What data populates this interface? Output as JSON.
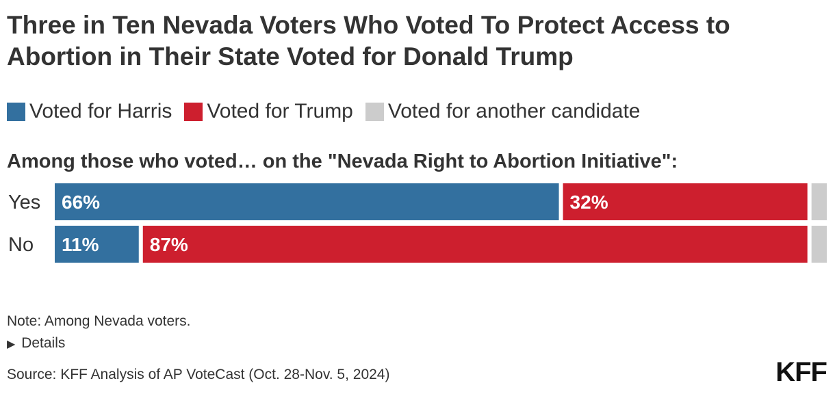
{
  "chart_data": {
    "type": "bar",
    "stacked": true,
    "orientation": "horizontal",
    "title": "Three in Ten Nevada Voters Who Voted To Protect Access to Abortion in Their State Voted for Donald Trump",
    "subtitle": "Among those who voted… on the \"Nevada Right to Abortion Initiative\":",
    "categories": [
      "Yes",
      "No"
    ],
    "series": [
      {
        "name": "Voted for Harris",
        "color": "#33709f",
        "values": [
          66,
          11
        ],
        "labels": [
          "66%",
          "11%"
        ]
      },
      {
        "name": "Voted for Trump",
        "color": "#cd1f2e",
        "values": [
          32,
          87
        ],
        "labels": [
          "32%",
          "87%"
        ]
      },
      {
        "name": "Voted for another candidate",
        "color": "#cccccc",
        "values": [
          2,
          2
        ],
        "labels": [
          "",
          ""
        ]
      }
    ],
    "xlim": [
      0,
      100
    ],
    "grid": false,
    "legend": "top-left"
  },
  "footer": {
    "note": "Note: Among Nevada voters.",
    "details": "Details",
    "source": "Source: KFF Analysis of AP VoteCast (Oct. 28-Nov. 5, 2024)",
    "logo": "KFF"
  }
}
